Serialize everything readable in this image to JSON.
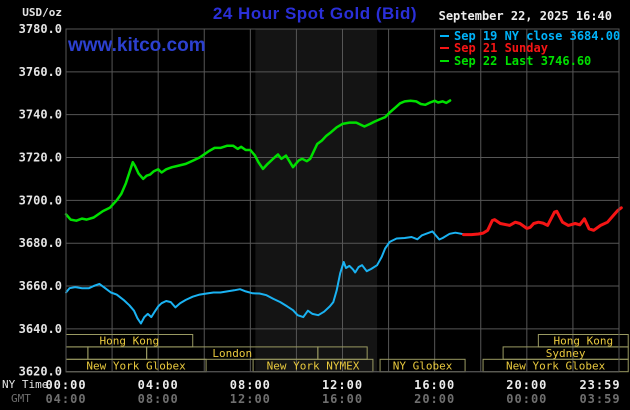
{
  "header": {
    "units_label": "USD/oz",
    "title": "24 Hour Spot Gold (Bid)",
    "datetime": "September 22, 2025 16:40",
    "watermark": "www.kitco.com"
  },
  "legend": [
    {
      "label": "Sep 19 NY close 3684.00",
      "color": "#00b2f8"
    },
    {
      "label": "Sep 21 Sunday",
      "color": "#f51515"
    },
    {
      "label": "Sep 22 Last 3746.60",
      "color": "#00e000"
    }
  ],
  "axes": {
    "x_ny_label": "NY Time",
    "x_gmt_label": "GMT",
    "y_ticks": [
      {
        "v": 3780,
        "label": "3780.0"
      },
      {
        "v": 3760,
        "label": "3760.0"
      },
      {
        "v": 3740,
        "label": "3740.0"
      },
      {
        "v": 3720,
        "label": "3720.0"
      },
      {
        "v": 3700,
        "label": "3700.0"
      },
      {
        "v": 3680,
        "label": "3680.0"
      },
      {
        "v": 3660,
        "label": "3660.0"
      },
      {
        "v": 3640,
        "label": "3640.0"
      },
      {
        "v": 3620,
        "label": "3620.0"
      }
    ],
    "x_ticks": [
      {
        "t": 0,
        "ny": "00:00",
        "gmt": "04:00"
      },
      {
        "t": 4,
        "ny": "04:00",
        "gmt": "08:00"
      },
      {
        "t": 8,
        "ny": "08:00",
        "gmt": "12:00"
      },
      {
        "t": 12,
        "ny": "12:00",
        "gmt": "16:00"
      },
      {
        "t": 16,
        "ny": "16:00",
        "gmt": "20:00"
      },
      {
        "t": 20,
        "ny": "20:00",
        "gmt": "00:00"
      },
      {
        "t": 24,
        "ny": "23:59",
        "gmt": "03:59"
      }
    ]
  },
  "sessions": {
    "border_color": "#9a9a62",
    "label_color": "#e9c93e",
    "rows": [
      {
        "boxes": [
          {
            "s": 0,
            "e": 5.5,
            "label": "Hong Kong"
          },
          {
            "s": 20.5,
            "e": 24.4,
            "label": "Hong Kong"
          }
        ]
      },
      {
        "boxes": [
          {
            "s": 0,
            "e": 0.95,
            "label": ""
          },
          {
            "s": 0.95,
            "e": 3.5,
            "label": ""
          },
          {
            "s": 3.5,
            "e": 10.93,
            "label": "London"
          },
          {
            "s": 10.93,
            "e": 13.07,
            "label": ""
          },
          {
            "s": 18.97,
            "e": 24.4,
            "label": "Sydney"
          }
        ]
      },
      {
        "boxes": [
          {
            "s": 0,
            "e": 6.08,
            "label": "New York Globex"
          },
          {
            "s": 8.12,
            "e": 13.32,
            "label": "New York NYMEX"
          },
          {
            "s": 13.63,
            "e": 17.32,
            "label": "NY Globex"
          },
          {
            "s": 18.1,
            "e": 24.4,
            "label": "New York Globex"
          }
        ]
      }
    ]
  },
  "chart_data": {
    "type": "line",
    "title": "24 Hour Spot Gold (Bid)",
    "ylabel": "USD/oz",
    "xlabel": "NY Time (hours)",
    "ylim": [
      3620,
      3780
    ],
    "xlim": [
      0,
      24
    ],
    "grid": {
      "x_step_hours": 2,
      "y_step": 20,
      "color": "#565656"
    },
    "highlight_band": {
      "start": 8.22,
      "end": 13.5,
      "note": "NYMEX session shading"
    },
    "series": [
      {
        "name": "Sep 19 NY close",
        "close": 3684.0,
        "color": "#1ab2f2",
        "width": 2,
        "points": [
          [
            0,
            3657
          ],
          [
            0.15,
            3659
          ],
          [
            0.4,
            3659.5
          ],
          [
            0.7,
            3659
          ],
          [
            1.0,
            3659
          ],
          [
            1.2,
            3660
          ],
          [
            1.45,
            3661
          ],
          [
            1.7,
            3659
          ],
          [
            1.95,
            3657
          ],
          [
            2.2,
            3656
          ],
          [
            2.5,
            3653.5
          ],
          [
            2.75,
            3651
          ],
          [
            2.95,
            3648.5
          ],
          [
            3.1,
            3645
          ],
          [
            3.25,
            3642.5
          ],
          [
            3.4,
            3645.5
          ],
          [
            3.55,
            3647
          ],
          [
            3.7,
            3645.5
          ],
          [
            3.85,
            3648
          ],
          [
            4.0,
            3650.5
          ],
          [
            4.15,
            3652
          ],
          [
            4.35,
            3653
          ],
          [
            4.55,
            3652.5
          ],
          [
            4.75,
            3650
          ],
          [
            4.95,
            3652
          ],
          [
            5.2,
            3653.5
          ],
          [
            5.5,
            3655
          ],
          [
            5.8,
            3656
          ],
          [
            6.1,
            3656.5
          ],
          [
            6.4,
            3657
          ],
          [
            6.7,
            3657
          ],
          [
            7.0,
            3657.5
          ],
          [
            7.3,
            3658
          ],
          [
            7.55,
            3658.5
          ],
          [
            7.8,
            3657.5
          ],
          [
            8.1,
            3656.6
          ],
          [
            8.4,
            3656.5
          ],
          [
            8.7,
            3655.7
          ],
          [
            9.0,
            3654
          ],
          [
            9.3,
            3652.5
          ],
          [
            9.6,
            3650.5
          ],
          [
            9.85,
            3648.7
          ],
          [
            10.05,
            3646.4
          ],
          [
            10.3,
            3645.5
          ],
          [
            10.5,
            3648.5
          ],
          [
            10.7,
            3647
          ],
          [
            10.95,
            3646.4
          ],
          [
            11.2,
            3648
          ],
          [
            11.45,
            3650.5
          ],
          [
            11.6,
            3652.5
          ],
          [
            11.75,
            3658
          ],
          [
            11.9,
            3666
          ],
          [
            12.05,
            3671.2
          ],
          [
            12.15,
            3668.4
          ],
          [
            12.3,
            3669.4
          ],
          [
            12.45,
            3667.8
          ],
          [
            12.55,
            3666.3
          ],
          [
            12.7,
            3668.9
          ],
          [
            12.85,
            3669.7
          ],
          [
            13.05,
            3666.9
          ],
          [
            13.25,
            3668
          ],
          [
            13.5,
            3669.7
          ],
          [
            13.7,
            3673.6
          ],
          [
            13.85,
            3677.5
          ],
          [
            14.05,
            3680.6
          ],
          [
            14.35,
            3682.2
          ],
          [
            14.7,
            3682.4
          ],
          [
            15.0,
            3682.9
          ],
          [
            15.25,
            3681.8
          ],
          [
            15.45,
            3683.7
          ],
          [
            15.9,
            3685.5
          ],
          [
            16.2,
            3681.7
          ],
          [
            16.35,
            3682.4
          ],
          [
            16.65,
            3684.4
          ],
          [
            16.9,
            3684.9
          ],
          [
            17.25,
            3684.2
          ]
        ]
      },
      {
        "name": "Sep 21 Sunday",
        "color": "#f51515",
        "width": 3,
        "points": [
          [
            17.25,
            3684
          ],
          [
            17.6,
            3684
          ],
          [
            17.9,
            3684.3
          ],
          [
            18.1,
            3684.7
          ],
          [
            18.3,
            3686
          ],
          [
            18.5,
            3690.6
          ],
          [
            18.6,
            3691
          ],
          [
            18.85,
            3689.2
          ],
          [
            19.25,
            3688.3
          ],
          [
            19.5,
            3689.8
          ],
          [
            19.7,
            3689.2
          ],
          [
            20.0,
            3686.9
          ],
          [
            20.15,
            3687.4
          ],
          [
            20.3,
            3689.2
          ],
          [
            20.5,
            3689.8
          ],
          [
            20.7,
            3689.4
          ],
          [
            20.9,
            3688.3
          ],
          [
            21.2,
            3694.5
          ],
          [
            21.3,
            3694.9
          ],
          [
            21.55,
            3689.8
          ],
          [
            21.8,
            3688.3
          ],
          [
            22.1,
            3689.2
          ],
          [
            22.3,
            3688.6
          ],
          [
            22.5,
            3691.4
          ],
          [
            22.7,
            3686.7
          ],
          [
            22.9,
            3686
          ],
          [
            23.2,
            3688.3
          ],
          [
            23.5,
            3689.8
          ],
          [
            23.75,
            3692.9
          ],
          [
            23.95,
            3695.3
          ],
          [
            24.1,
            3696.5
          ]
        ]
      },
      {
        "name": "Sep 22 Last",
        "last": 3746.6,
        "color": "#00e000",
        "width": 2.5,
        "points": [
          [
            0,
            3693.5
          ],
          [
            0.2,
            3691
          ],
          [
            0.45,
            3690.5
          ],
          [
            0.7,
            3691.5
          ],
          [
            0.9,
            3691
          ],
          [
            1.2,
            3692
          ],
          [
            1.6,
            3695
          ],
          [
            1.9,
            3696.5
          ],
          [
            2.2,
            3700
          ],
          [
            2.4,
            3703
          ],
          [
            2.6,
            3708
          ],
          [
            2.75,
            3713
          ],
          [
            2.9,
            3717.8
          ],
          [
            3.0,
            3716
          ],
          [
            3.15,
            3712.5
          ],
          [
            3.35,
            3710
          ],
          [
            3.5,
            3711.5
          ],
          [
            3.65,
            3712
          ],
          [
            3.8,
            3713.5
          ],
          [
            4.0,
            3714.5
          ],
          [
            4.15,
            3713
          ],
          [
            4.35,
            3714.5
          ],
          [
            4.6,
            3715.5
          ],
          [
            4.8,
            3716
          ],
          [
            5.0,
            3716.5
          ],
          [
            5.2,
            3717
          ],
          [
            5.5,
            3718.5
          ],
          [
            5.8,
            3720
          ],
          [
            6.0,
            3721.5
          ],
          [
            6.2,
            3723
          ],
          [
            6.45,
            3724.5
          ],
          [
            6.7,
            3724.5
          ],
          [
            7.0,
            3725.5
          ],
          [
            7.25,
            3725.5
          ],
          [
            7.45,
            3724
          ],
          [
            7.6,
            3725
          ],
          [
            7.8,
            3723.5
          ],
          [
            8.0,
            3723.5
          ],
          [
            8.2,
            3721
          ],
          [
            8.35,
            3717.8
          ],
          [
            8.55,
            3714.7
          ],
          [
            8.75,
            3717
          ],
          [
            9.05,
            3720
          ],
          [
            9.2,
            3721.4
          ],
          [
            9.35,
            3719.4
          ],
          [
            9.55,
            3720.9
          ],
          [
            9.85,
            3715.5
          ],
          [
            10.1,
            3718.6
          ],
          [
            10.25,
            3719.4
          ],
          [
            10.45,
            3718.3
          ],
          [
            10.6,
            3719.4
          ],
          [
            10.9,
            3726.3
          ],
          [
            11.1,
            3727.9
          ],
          [
            11.3,
            3730.2
          ],
          [
            11.5,
            3731.8
          ],
          [
            11.75,
            3734.1
          ],
          [
            12.0,
            3735.7
          ],
          [
            12.3,
            3736.3
          ],
          [
            12.6,
            3736.3
          ],
          [
            12.95,
            3734.5
          ],
          [
            13.2,
            3735.7
          ],
          [
            13.4,
            3736.8
          ],
          [
            13.65,
            3738
          ],
          [
            13.85,
            3738.8
          ],
          [
            14.05,
            3741
          ],
          [
            14.3,
            3743.4
          ],
          [
            14.5,
            3745.3
          ],
          [
            14.7,
            3746.2
          ],
          [
            14.95,
            3746.5
          ],
          [
            15.2,
            3746.2
          ],
          [
            15.4,
            3745
          ],
          [
            15.6,
            3744.6
          ],
          [
            15.8,
            3745.7
          ],
          [
            16.0,
            3746.5
          ],
          [
            16.15,
            3745.7
          ],
          [
            16.35,
            3746.2
          ],
          [
            16.5,
            3745.5
          ],
          [
            16.67,
            3746.6
          ]
        ]
      }
    ]
  }
}
